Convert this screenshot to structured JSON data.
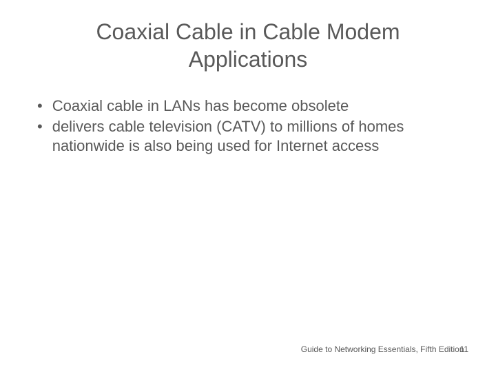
{
  "title": "Coaxial Cable in Cable Modem Applications",
  "bullets": [
    "Coaxial cable in LANs has become obsolete",
    "delivers cable television (CATV) to millions of homes nationwide is also being used for Internet access"
  ],
  "footer": {
    "text": "Guide to Networking Essentials, Fifth Edition",
    "page": "11"
  },
  "colors": {
    "text": "#595959",
    "background": "#ffffff"
  },
  "typography": {
    "title_fontsize": 32,
    "bullet_fontsize": 22,
    "footer_fontsize": 12,
    "font_family": "Arial"
  }
}
